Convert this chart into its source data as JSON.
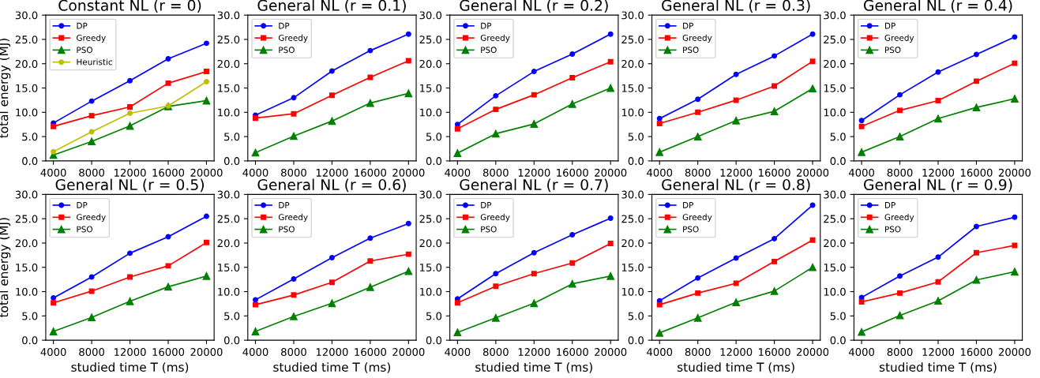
{
  "chart_data": [
    {
      "type": "line",
      "title": "Constant NL (r = 0)",
      "ylabel": "total energy (MJ)",
      "x": [
        4000,
        8000,
        12000,
        16000,
        20000
      ],
      "xlim": [
        3200,
        20800
      ],
      "xticks": [
        4000,
        8000,
        12000,
        16000,
        20000
      ],
      "ylim": [
        0,
        30
      ],
      "yticks": [
        {
          "value": 0,
          "label": "0.0"
        },
        {
          "value": 5,
          "label": "5.0"
        },
        {
          "value": 10,
          "label": "10.0"
        },
        {
          "value": 15,
          "label": "15.0"
        },
        {
          "value": 20,
          "label": "20.0"
        },
        {
          "value": 25,
          "label": "25.0"
        },
        {
          "value": 30,
          "label": "30.0"
        }
      ],
      "legend": "top left",
      "grid": false,
      "series": [
        {
          "name": "DP",
          "color": "#0000ff",
          "marker": "circle",
          "values": [
            7.8,
            12.3,
            16.5,
            21.0,
            24.2
          ]
        },
        {
          "name": "Greedy",
          "color": "#ff0000",
          "marker": "square",
          "values": [
            7.1,
            9.3,
            11.1,
            16.0,
            18.4
          ]
        },
        {
          "name": "PSO",
          "color": "#008000",
          "marker": "triangle",
          "values": [
            1.2,
            4.0,
            7.2,
            11.2,
            12.4
          ]
        },
        {
          "name": "Heuristic",
          "color": "#bfbf00",
          "marker": "circle",
          "values": [
            1.9,
            6.0,
            9.8,
            11.3,
            16.3
          ]
        }
      ]
    },
    {
      "type": "line",
      "title": "General NL (r = 0.1)",
      "x": [
        4000,
        8000,
        12000,
        16000,
        20000
      ],
      "xlim": [
        3200,
        20800
      ],
      "xticks": [
        4000,
        8000,
        12000,
        16000,
        20000
      ],
      "ylim": [
        0,
        30
      ],
      "yticks": [
        {
          "value": 0,
          "label": "0.0"
        },
        {
          "value": 5,
          "label": "5.0"
        },
        {
          "value": 10,
          "label": "10.0"
        },
        {
          "value": 15,
          "label": "15.0"
        },
        {
          "value": 20,
          "label": "20.0"
        },
        {
          "value": 25,
          "label": "25.0"
        },
        {
          "value": 30,
          "label": "30.0"
        }
      ],
      "legend": "top left",
      "grid": false,
      "series": [
        {
          "name": "DP",
          "color": "#0000ff",
          "marker": "circle",
          "values": [
            9.4,
            13.0,
            18.5,
            22.7,
            26.1
          ]
        },
        {
          "name": "Greedy",
          "color": "#ff0000",
          "marker": "square",
          "values": [
            8.8,
            9.7,
            13.5,
            17.2,
            20.6
          ]
        },
        {
          "name": "PSO",
          "color": "#008000",
          "marker": "triangle",
          "values": [
            1.7,
            5.1,
            8.2,
            11.9,
            13.9
          ]
        }
      ]
    },
    {
      "type": "line",
      "title": "General NL (r = 0.2)",
      "x": [
        4000,
        8000,
        12000,
        16000,
        20000
      ],
      "xlim": [
        3200,
        20800
      ],
      "xticks": [
        4000,
        8000,
        12000,
        16000,
        20000
      ],
      "ylim": [
        0,
        30
      ],
      "yticks": [
        {
          "value": 0,
          "label": "0.0"
        },
        {
          "value": 5,
          "label": "5.0"
        },
        {
          "value": 10,
          "label": "10.0"
        },
        {
          "value": 15,
          "label": "15.0"
        },
        {
          "value": 20,
          "label": "20.0"
        },
        {
          "value": 25,
          "label": "25.0"
        },
        {
          "value": 30,
          "label": "30.0"
        }
      ],
      "legend": "top left",
      "grid": false,
      "series": [
        {
          "name": "DP",
          "color": "#0000ff",
          "marker": "circle",
          "values": [
            7.5,
            13.4,
            18.4,
            22.0,
            26.1
          ]
        },
        {
          "name": "Greedy",
          "color": "#ff0000",
          "marker": "square",
          "values": [
            6.6,
            10.6,
            13.6,
            17.1,
            20.4
          ]
        },
        {
          "name": "PSO",
          "color": "#008000",
          "marker": "triangle",
          "values": [
            1.6,
            5.6,
            7.6,
            11.7,
            15.0
          ]
        }
      ]
    },
    {
      "type": "line",
      "title": "General NL (r = 0.3)",
      "x": [
        4000,
        8000,
        12000,
        16000,
        20000
      ],
      "xlim": [
        3200,
        20800
      ],
      "xticks": [
        4000,
        8000,
        12000,
        16000,
        20000
      ],
      "ylim": [
        0,
        30
      ],
      "yticks": [
        {
          "value": 0,
          "label": "0.0"
        },
        {
          "value": 5,
          "label": "5.0"
        },
        {
          "value": 10,
          "label": "10.0"
        },
        {
          "value": 15,
          "label": "15.0"
        },
        {
          "value": 20,
          "label": "20.0"
        },
        {
          "value": 25,
          "label": "25.0"
        },
        {
          "value": 30,
          "label": "30.0"
        }
      ],
      "legend": "top left",
      "grid": false,
      "series": [
        {
          "name": "DP",
          "color": "#0000ff",
          "marker": "circle",
          "values": [
            8.7,
            12.7,
            17.8,
            21.6,
            26.1
          ]
        },
        {
          "name": "Greedy",
          "color": "#ff0000",
          "marker": "square",
          "values": [
            7.7,
            10.0,
            12.5,
            15.4,
            20.5
          ]
        },
        {
          "name": "PSO",
          "color": "#008000",
          "marker": "triangle",
          "values": [
            1.8,
            5.0,
            8.3,
            10.2,
            14.9
          ]
        }
      ]
    },
    {
      "type": "line",
      "title": "General NL (r = 0.4)",
      "x": [
        4000,
        8000,
        12000,
        16000,
        20000
      ],
      "xlim": [
        3200,
        20800
      ],
      "xticks": [
        4000,
        8000,
        12000,
        16000,
        20000
      ],
      "ylim": [
        0,
        30
      ],
      "yticks": [
        {
          "value": 0,
          "label": "0.0"
        },
        {
          "value": 5,
          "label": "5.0"
        },
        {
          "value": 10,
          "label": "10.0"
        },
        {
          "value": 15,
          "label": "15.0"
        },
        {
          "value": 20,
          "label": "20.0"
        },
        {
          "value": 25,
          "label": "25.0"
        },
        {
          "value": 30,
          "label": "30.0"
        }
      ],
      "legend": "top left",
      "grid": false,
      "series": [
        {
          "name": "DP",
          "color": "#0000ff",
          "marker": "circle",
          "values": [
            8.3,
            13.6,
            18.3,
            21.9,
            25.5
          ]
        },
        {
          "name": "Greedy",
          "color": "#ff0000",
          "marker": "square",
          "values": [
            7.1,
            10.4,
            12.4,
            16.4,
            20.1
          ]
        },
        {
          "name": "PSO",
          "color": "#008000",
          "marker": "triangle",
          "values": [
            1.8,
            5.0,
            8.7,
            11.0,
            12.8
          ]
        }
      ]
    },
    {
      "type": "line",
      "title": "General NL (r = 0.5)",
      "xlabel": "studied time T (ms)",
      "ylabel": "total energy (MJ)",
      "x": [
        4000,
        8000,
        12000,
        16000,
        20000
      ],
      "xlim": [
        3200,
        20800
      ],
      "xticks": [
        4000,
        8000,
        12000,
        16000,
        20000
      ],
      "ylim": [
        0,
        30
      ],
      "yticks": [
        {
          "value": 0,
          "label": "0.0"
        },
        {
          "value": 5,
          "label": "5.0"
        },
        {
          "value": 10,
          "label": "10.0"
        },
        {
          "value": 15,
          "label": "15.0"
        },
        {
          "value": 20,
          "label": "20.0"
        },
        {
          "value": 25,
          "label": "25.0"
        },
        {
          "value": 30,
          "label": "30.0"
        }
      ],
      "legend": "top left",
      "grid": false,
      "series": [
        {
          "name": "DP",
          "color": "#0000ff",
          "marker": "circle",
          "values": [
            8.7,
            13.0,
            17.9,
            21.3,
            25.5
          ]
        },
        {
          "name": "Greedy",
          "color": "#ff0000",
          "marker": "square",
          "values": [
            7.7,
            10.1,
            13.0,
            15.3,
            20.1
          ]
        },
        {
          "name": "PSO",
          "color": "#008000",
          "marker": "triangle",
          "values": [
            1.8,
            4.7,
            8.0,
            11.0,
            13.2
          ]
        }
      ]
    },
    {
      "type": "line",
      "title": "General NL (r = 0.6)",
      "xlabel": "studied time T (ms)",
      "x": [
        4000,
        8000,
        12000,
        16000,
        20000
      ],
      "xlim": [
        3200,
        20800
      ],
      "xticks": [
        4000,
        8000,
        12000,
        16000,
        20000
      ],
      "ylim": [
        0,
        30
      ],
      "yticks": [
        {
          "value": 0,
          "label": "0.0"
        },
        {
          "value": 5,
          "label": "5.0"
        },
        {
          "value": 10,
          "label": "10.0"
        },
        {
          "value": 15,
          "label": "15.0"
        },
        {
          "value": 20,
          "label": "20.0"
        },
        {
          "value": 25,
          "label": "25.0"
        },
        {
          "value": 30,
          "label": "30.0"
        }
      ],
      "legend": "top left",
      "grid": false,
      "series": [
        {
          "name": "DP",
          "color": "#0000ff",
          "marker": "circle",
          "values": [
            8.3,
            12.6,
            17.0,
            21.0,
            24.0
          ]
        },
        {
          "name": "Greedy",
          "color": "#ff0000",
          "marker": "square",
          "values": [
            7.3,
            9.3,
            11.9,
            16.3,
            17.7
          ]
        },
        {
          "name": "PSO",
          "color": "#008000",
          "marker": "triangle",
          "values": [
            1.8,
            4.9,
            7.6,
            10.9,
            14.2
          ]
        }
      ]
    },
    {
      "type": "line",
      "title": "General NL (r = 0.7)",
      "xlabel": "studied time T (ms)",
      "x": [
        4000,
        8000,
        12000,
        16000,
        20000
      ],
      "xlim": [
        3200,
        20800
      ],
      "xticks": [
        4000,
        8000,
        12000,
        16000,
        20000
      ],
      "ylim": [
        0,
        30
      ],
      "yticks": [
        {
          "value": 0,
          "label": "0.0"
        },
        {
          "value": 5,
          "label": "5.0"
        },
        {
          "value": 10,
          "label": "10.0"
        },
        {
          "value": 15,
          "label": "15.0"
        },
        {
          "value": 20,
          "label": "20.0"
        },
        {
          "value": 25,
          "label": "25.0"
        },
        {
          "value": 30,
          "label": "30.0"
        }
      ],
      "legend": "top left",
      "grid": false,
      "series": [
        {
          "name": "DP",
          "color": "#0000ff",
          "marker": "circle",
          "values": [
            8.5,
            13.7,
            18.0,
            21.7,
            25.1
          ]
        },
        {
          "name": "Greedy",
          "color": "#ff0000",
          "marker": "square",
          "values": [
            7.7,
            11.1,
            13.7,
            15.9,
            19.9
          ]
        },
        {
          "name": "PSO",
          "color": "#008000",
          "marker": "triangle",
          "values": [
            1.6,
            4.6,
            7.6,
            11.6,
            13.2
          ]
        }
      ]
    },
    {
      "type": "line",
      "title": "General NL (r = 0.8)",
      "xlabel": "studied time T (ms)",
      "x": [
        4000,
        8000,
        12000,
        16000,
        20000
      ],
      "xlim": [
        3200,
        20800
      ],
      "xticks": [
        4000,
        8000,
        12000,
        16000,
        20000
      ],
      "ylim": [
        0,
        30
      ],
      "yticks": [
        {
          "value": 0,
          "label": "0.0"
        },
        {
          "value": 5,
          "label": "5.0"
        },
        {
          "value": 10,
          "label": "10.0"
        },
        {
          "value": 15,
          "label": "15.0"
        },
        {
          "value": 20,
          "label": "20.0"
        },
        {
          "value": 25,
          "label": "25.0"
        },
        {
          "value": 30,
          "label": "30.0"
        }
      ],
      "legend": "top left",
      "grid": false,
      "series": [
        {
          "name": "DP",
          "color": "#0000ff",
          "marker": "circle",
          "values": [
            8.1,
            12.8,
            16.9,
            20.9,
            27.8
          ]
        },
        {
          "name": "Greedy",
          "color": "#ff0000",
          "marker": "square",
          "values": [
            7.3,
            9.7,
            11.7,
            16.2,
            20.6
          ]
        },
        {
          "name": "PSO",
          "color": "#008000",
          "marker": "triangle",
          "values": [
            1.5,
            4.6,
            7.8,
            10.1,
            15.0
          ]
        }
      ]
    },
    {
      "type": "line",
      "title": "General NL (r = 0.9)",
      "xlabel": "studied time T (ms)",
      "x": [
        4000,
        8000,
        12000,
        16000,
        20000
      ],
      "xlim": [
        3200,
        20800
      ],
      "xticks": [
        4000,
        8000,
        12000,
        16000,
        20000
      ],
      "ylim": [
        0,
        30
      ],
      "yticks": [
        {
          "value": 0,
          "label": "0.0"
        },
        {
          "value": 5,
          "label": "5.0"
        },
        {
          "value": 10,
          "label": "10.0"
        },
        {
          "value": 15,
          "label": "15.0"
        },
        {
          "value": 20,
          "label": "20.0"
        },
        {
          "value": 25,
          "label": "25.0"
        },
        {
          "value": 30,
          "label": "30.0"
        }
      ],
      "legend": "top left",
      "grid": false,
      "series": [
        {
          "name": "DP",
          "color": "#0000ff",
          "marker": "circle",
          "values": [
            8.8,
            13.2,
            17.1,
            23.4,
            25.3
          ]
        },
        {
          "name": "Greedy",
          "color": "#ff0000",
          "marker": "square",
          "values": [
            7.9,
            9.7,
            12.0,
            18.0,
            19.5
          ]
        },
        {
          "name": "PSO",
          "color": "#008000",
          "marker": "triangle",
          "values": [
            1.7,
            5.1,
            8.1,
            12.4,
            14.1
          ]
        }
      ]
    }
  ]
}
